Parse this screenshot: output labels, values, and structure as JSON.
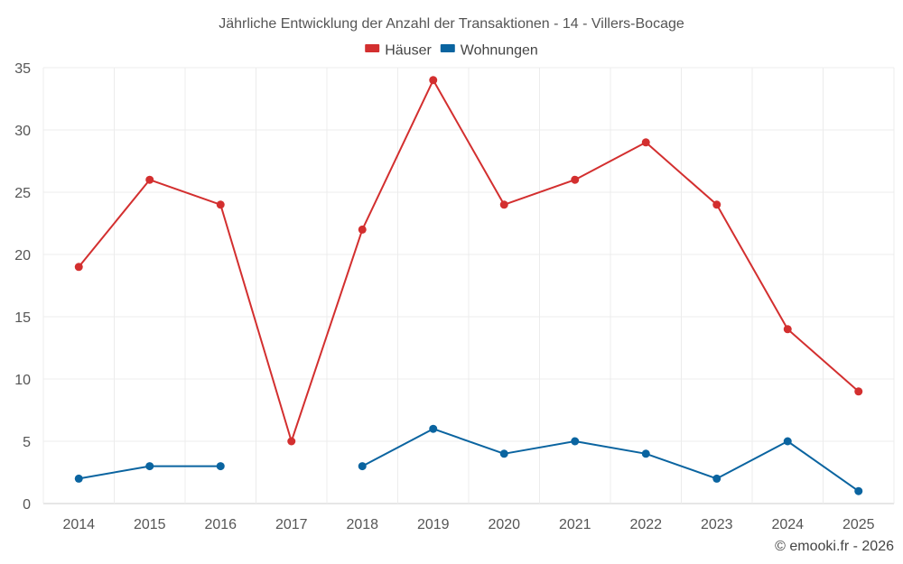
{
  "chart_data": {
    "type": "line",
    "title": "Jährliche Entwicklung der Anzahl der Transaktionen - 14 - Villers-Bocage",
    "categories": [
      "2014",
      "2015",
      "2016",
      "2017",
      "2018",
      "2019",
      "2020",
      "2021",
      "2022",
      "2023",
      "2024",
      "2025"
    ],
    "series": [
      {
        "name": "Häuser",
        "color": "#d32f2f",
        "values": [
          19,
          26,
          24,
          5,
          22,
          34,
          24,
          26,
          29,
          24,
          14,
          9
        ]
      },
      {
        "name": "Wohnungen",
        "color": "#0a64a0",
        "values": [
          2,
          3,
          3,
          null,
          3,
          6,
          4,
          5,
          4,
          2,
          5,
          1
        ]
      }
    ],
    "ylim": [
      0,
      35
    ],
    "yticks": [
      0,
      5,
      10,
      15,
      20,
      25,
      30,
      35
    ],
    "grid": true,
    "legend_position": "top-center",
    "xlabel": "",
    "ylabel": ""
  },
  "credit": "© emooki.fr - 2026"
}
